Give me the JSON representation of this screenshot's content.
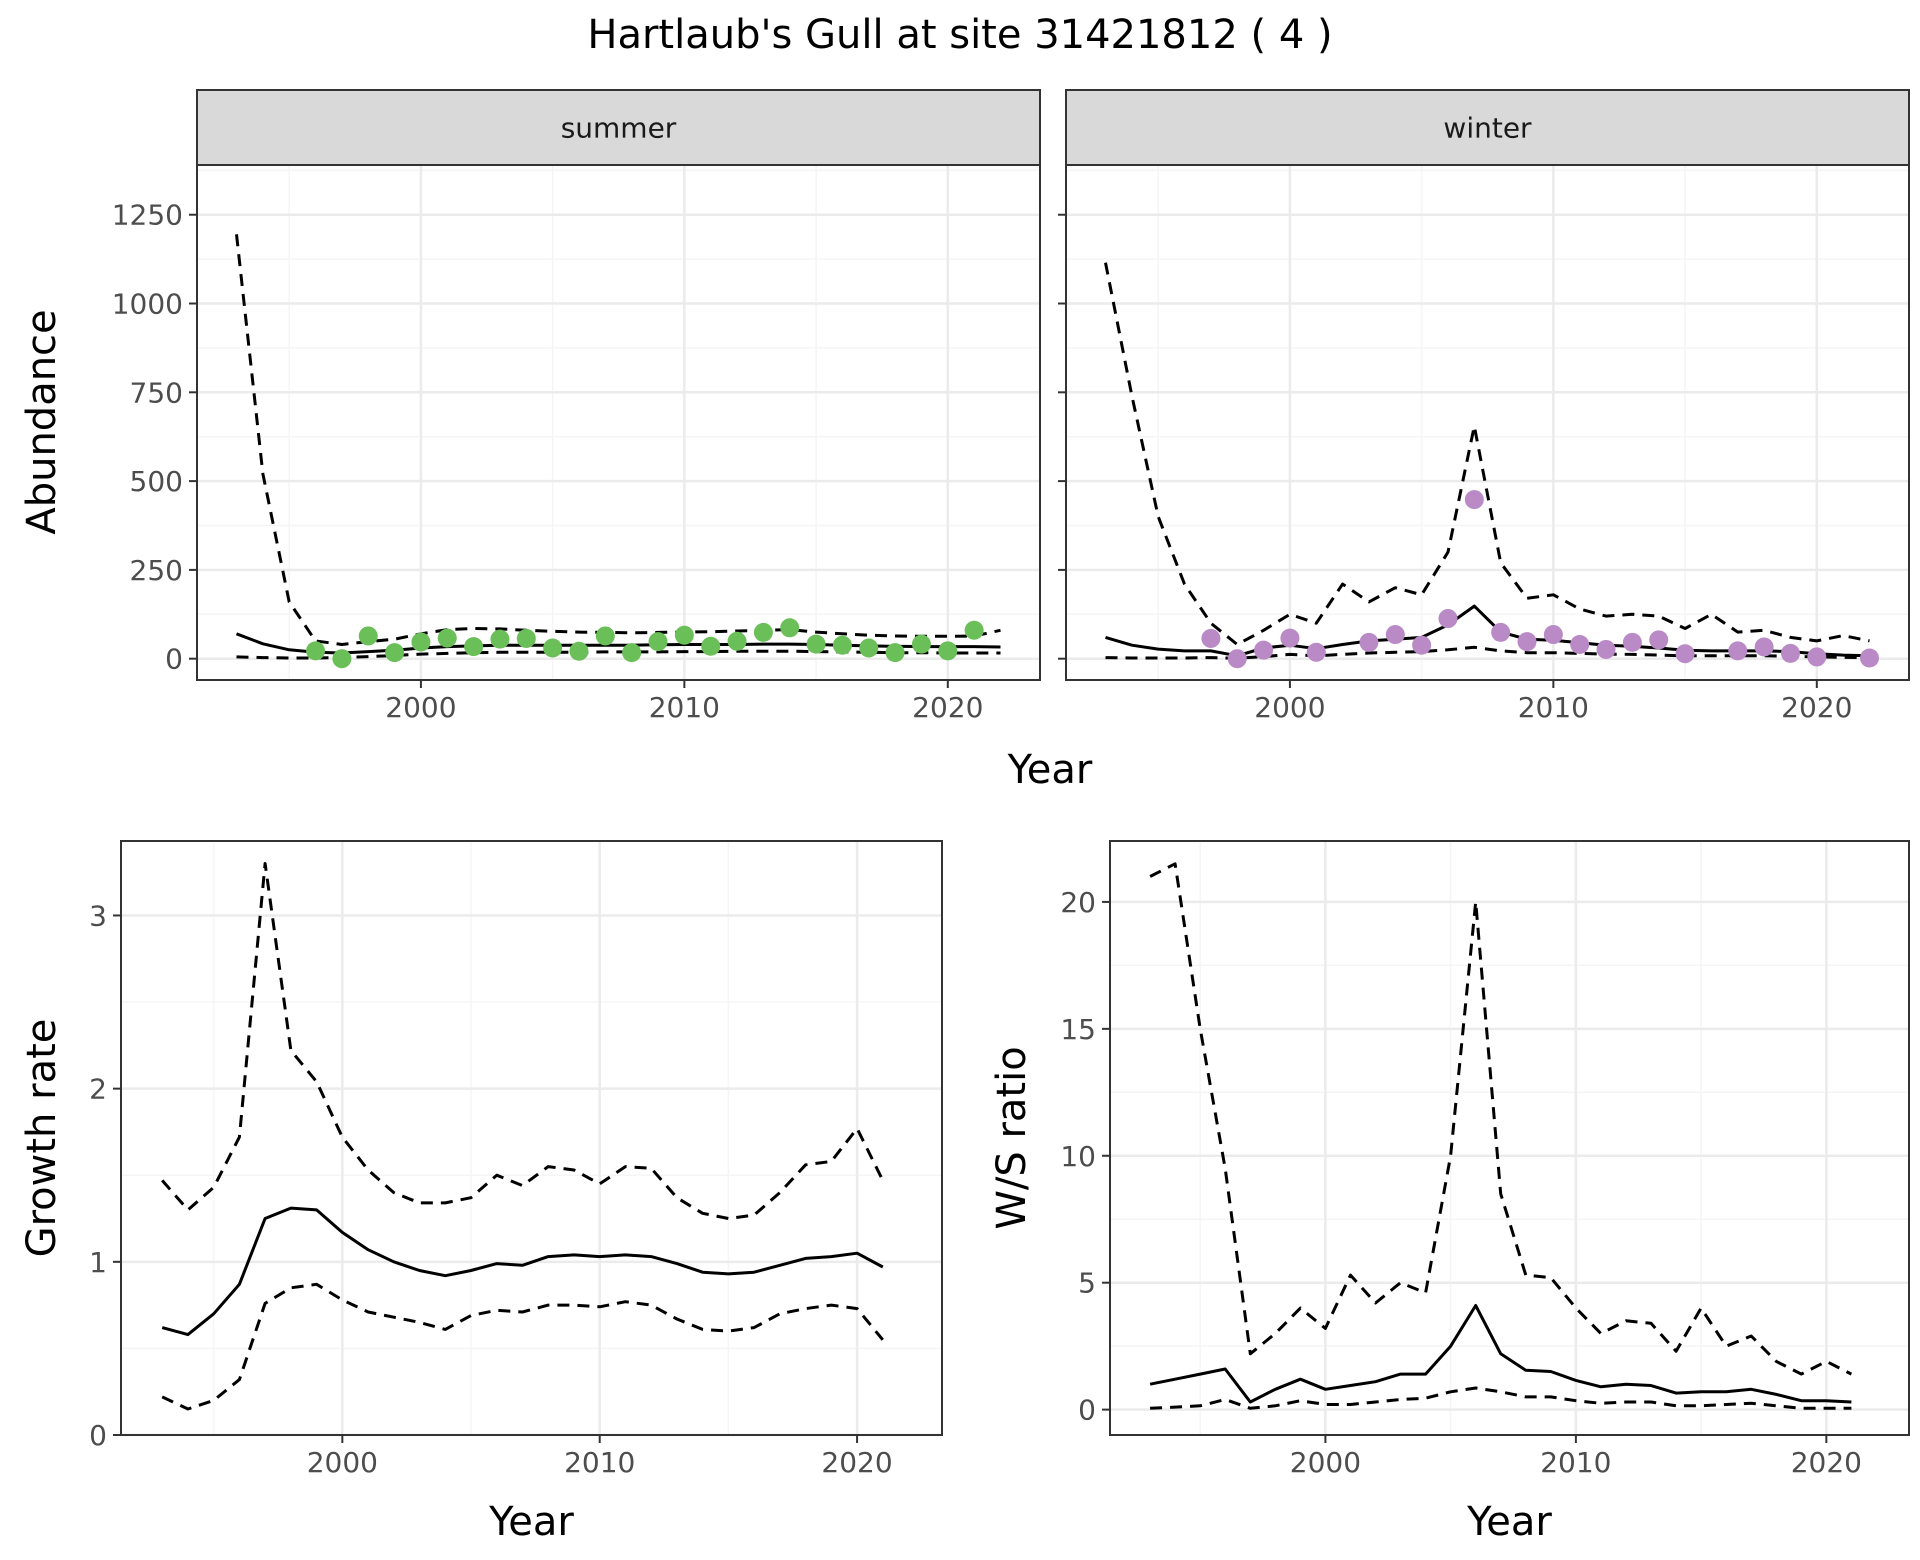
{
  "figure": {
    "title": "Hartlaub's Gull at site 31421812 ( 4 )"
  },
  "colors": {
    "summer_points": "#6BBF59",
    "winter_points": "#B98AC6",
    "line": "#000000",
    "strip_bg": "#D9D9D9",
    "grid_major": "#EBEBEB",
    "grid_minor": "#F5F5F5",
    "border": "#333333"
  },
  "chart_data": [
    {
      "id": "abundance",
      "type": "line",
      "facets": [
        "summer",
        "winter"
      ],
      "xlabel": "Year",
      "ylabel": "Abundance",
      "xlim": [
        1991.5,
        2023.5
      ],
      "ylim": [
        -60,
        1390
      ],
      "xticks": [
        2000,
        2010,
        2020
      ],
      "yticks": [
        0,
        250,
        500,
        750,
        1000,
        1250
      ],
      "grid": true,
      "panels": [
        {
          "name": "summer",
          "estimate": {
            "x": [
              1993,
              1994,
              1995,
              1996,
              1997,
              1998,
              1999,
              2000,
              2001,
              2002,
              2003,
              2004,
              2005,
              2006,
              2007,
              2008,
              2009,
              2010,
              2011,
              2012,
              2013,
              2014,
              2015,
              2016,
              2017,
              2018,
              2019,
              2020,
              2021,
              2022
            ],
            "y": [
              70,
              42,
              25,
              18,
              16,
              20,
              24,
              30,
              34,
              36,
              38,
              38,
              38,
              38,
              38,
              38,
              39,
              40,
              40,
              40,
              41,
              41,
              40,
              38,
              36,
              35,
              34,
              34,
              34,
              33
            ]
          },
          "lower": {
            "x": [
              1993,
              1994,
              1995,
              1996,
              1997,
              1998,
              1999,
              2000,
              2001,
              2002,
              2003,
              2004,
              2005,
              2006,
              2007,
              2008,
              2009,
              2010,
              2011,
              2012,
              2013,
              2014,
              2015,
              2016,
              2017,
              2018,
              2019,
              2020,
              2021,
              2022
            ],
            "y": [
              5,
              3,
              2,
              2,
              3,
              6,
              9,
              13,
              15,
              17,
              18,
              18,
              18,
              18,
              19,
              19,
              19,
              20,
              20,
              21,
              21,
              21,
              20,
              19,
              18,
              17,
              17,
              16,
              16,
              16
            ]
          },
          "upper": {
            "x": [
              1993,
              1994,
              1995,
              1996,
              1997,
              1998,
              1999,
              2000,
              2001,
              2002,
              2003,
              2004,
              2005,
              2006,
              2007,
              2008,
              2009,
              2010,
              2011,
              2012,
              2013,
              2014,
              2015,
              2016,
              2017,
              2018,
              2019,
              2020,
              2021,
              2022
            ],
            "y": [
              1195,
              520,
              160,
              50,
              40,
              48,
              55,
              70,
              82,
              85,
              84,
              80,
              77,
              75,
              74,
              73,
              74,
              75,
              76,
              78,
              80,
              82,
              75,
              70,
              66,
              64,
              63,
              63,
              64,
              80
            ]
          },
          "observed": {
            "x": [
              1996,
              1997,
              1998,
              1999,
              2000,
              2001,
              2002,
              2003,
              2004,
              2005,
              2006,
              2007,
              2008,
              2009,
              2010,
              2011,
              2012,
              2013,
              2014,
              2015,
              2016,
              2017,
              2018,
              2019,
              2020,
              2021
            ],
            "y": [
              22,
              0,
              64,
              17,
              47,
              58,
              34,
              55,
              57,
              30,
              21,
              64,
              17,
              48,
              66,
              35,
              49,
              74,
              87,
              41,
              38,
              30,
              17,
              41,
              22,
              80
            ]
          }
        },
        {
          "name": "winter",
          "estimate": {
            "x": [
              1993,
              1994,
              1995,
              1996,
              1997,
              1998,
              1999,
              2000,
              2001,
              2002,
              2003,
              2004,
              2005,
              2006,
              2007,
              2008,
              2009,
              2010,
              2011,
              2012,
              2013,
              2014,
              2015,
              2016,
              2017,
              2018,
              2019,
              2020,
              2021,
              2022
            ],
            "y": [
              60,
              38,
              27,
              22,
              22,
              8,
              30,
              38,
              28,
              40,
              50,
              55,
              60,
              95,
              148,
              75,
              55,
              52,
              45,
              38,
              35,
              30,
              24,
              22,
              22,
              22,
              20,
              14,
              10,
              8
            ]
          },
          "lower": {
            "x": [
              1993,
              1994,
              1995,
              1996,
              1997,
              1998,
              1999,
              2000,
              2001,
              2002,
              2003,
              2004,
              2005,
              2006,
              2007,
              2008,
              2009,
              2010,
              2011,
              2012,
              2013,
              2014,
              2015,
              2016,
              2017,
              2018,
              2019,
              2020,
              2021,
              2022
            ],
            "y": [
              3,
              2,
              2,
              2,
              3,
              1,
              6,
              12,
              8,
              12,
              16,
              18,
              20,
              25,
              32,
              22,
              17,
              17,
              15,
              13,
              12,
              10,
              8,
              8,
              8,
              8,
              7,
              5,
              4,
              3
            ]
          },
          "upper": {
            "x": [
              1993,
              1994,
              1995,
              1996,
              1997,
              1998,
              1999,
              2000,
              2001,
              2002,
              2003,
              2004,
              2005,
              2006,
              2007,
              2008,
              2009,
              2010,
              2011,
              2012,
              2013,
              2014,
              2015,
              2016,
              2017,
              2018,
              2019,
              2020,
              2021,
              2022
            ],
            "y": [
              1115,
              740,
              400,
              210,
              100,
              40,
              80,
              125,
              100,
              210,
              160,
              200,
              180,
              300,
              655,
              270,
              170,
              180,
              140,
              120,
              125,
              120,
              85,
              125,
              75,
              80,
              60,
              50,
              65,
              50
            ]
          },
          "observed": {
            "x": [
              1997,
              1998,
              1999,
              2000,
              2001,
              2003,
              2004,
              2005,
              2006,
              2007,
              2008,
              2009,
              2010,
              2011,
              2012,
              2013,
              2014,
              2015,
              2017,
              2018,
              2019,
              2020,
              2022
            ],
            "y": [
              57,
              0,
              24,
              58,
              18,
              46,
              68,
              38,
              113,
              448,
              74,
              48,
              68,
              40,
              26,
              46,
              53,
              14,
              22,
              33,
              15,
              5,
              2
            ]
          }
        }
      ]
    },
    {
      "id": "growth",
      "type": "line",
      "xlabel": "Year",
      "ylabel": "Growth rate",
      "xlim": [
        1991.4,
        2023.3
      ],
      "ylim": [
        0,
        3.43
      ],
      "xticks": [
        2000,
        2010,
        2020
      ],
      "yticks": [
        0,
        1,
        2,
        3
      ],
      "grid": true,
      "estimate": {
        "x": [
          1993,
          1994,
          1995,
          1996,
          1997,
          1998,
          1999,
          2000,
          2001,
          2002,
          2003,
          2004,
          2005,
          2006,
          2007,
          2008,
          2009,
          2010,
          2011,
          2012,
          2013,
          2014,
          2015,
          2016,
          2017,
          2018,
          2019,
          2020,
          2021
        ],
        "y": [
          0.62,
          0.58,
          0.7,
          0.87,
          1.25,
          1.31,
          1.3,
          1.17,
          1.07,
          1.0,
          0.95,
          0.92,
          0.95,
          0.99,
          0.98,
          1.03,
          1.04,
          1.03,
          1.04,
          1.03,
          0.99,
          0.94,
          0.93,
          0.94,
          0.98,
          1.02,
          1.03,
          1.05,
          0.97
        ]
      },
      "lower": {
        "x": [
          1993,
          1994,
          1995,
          1996,
          1997,
          1998,
          1999,
          2000,
          2001,
          2002,
          2003,
          2004,
          2005,
          2006,
          2007,
          2008,
          2009,
          2010,
          2011,
          2012,
          2013,
          2014,
          2015,
          2016,
          2017,
          2018,
          2019,
          2020,
          2021
        ],
        "y": [
          0.22,
          0.15,
          0.2,
          0.32,
          0.76,
          0.85,
          0.87,
          0.78,
          0.71,
          0.68,
          0.65,
          0.61,
          0.69,
          0.72,
          0.71,
          0.75,
          0.75,
          0.74,
          0.77,
          0.75,
          0.67,
          0.61,
          0.6,
          0.62,
          0.7,
          0.73,
          0.75,
          0.73,
          0.55
        ]
      },
      "upper": {
        "x": [
          1993,
          1994,
          1995,
          1996,
          1997,
          1998,
          1999,
          2000,
          2001,
          2002,
          2003,
          2004,
          2005,
          2006,
          2007,
          2008,
          2009,
          2010,
          2011,
          2012,
          2013,
          2014,
          2015,
          2016,
          2017,
          2018,
          2019,
          2020,
          2021
        ],
        "y": [
          1.47,
          1.3,
          1.43,
          1.72,
          3.3,
          2.22,
          2.04,
          1.72,
          1.53,
          1.4,
          1.34,
          1.34,
          1.37,
          1.5,
          1.44,
          1.55,
          1.53,
          1.45,
          1.55,
          1.54,
          1.37,
          1.28,
          1.25,
          1.27,
          1.4,
          1.56,
          1.58,
          1.77,
          1.47
        ]
      }
    },
    {
      "id": "ws_ratio",
      "type": "line",
      "xlabel": "Year",
      "ylabel": "W/S ratio",
      "xlim": [
        1991.4,
        2023.3
      ],
      "ylim": [
        -1.0,
        22.4
      ],
      "xticks": [
        2000,
        2010,
        2020
      ],
      "yticks": [
        0,
        5,
        10,
        15,
        20
      ],
      "grid": true,
      "estimate": {
        "x": [
          1993,
          1994,
          1995,
          1996,
          1997,
          1998,
          1999,
          2000,
          2001,
          2002,
          2003,
          2004,
          2005,
          2006,
          2007,
          2008,
          2009,
          2010,
          2011,
          2012,
          2013,
          2014,
          2015,
          2016,
          2017,
          2018,
          2019,
          2020,
          2021
        ],
        "y": [
          1.0,
          1.2,
          1.4,
          1.6,
          0.3,
          0.8,
          1.2,
          0.8,
          0.95,
          1.1,
          1.4,
          1.4,
          2.5,
          4.1,
          2.2,
          1.55,
          1.5,
          1.15,
          0.9,
          1.0,
          0.95,
          0.65,
          0.7,
          0.7,
          0.8,
          0.6,
          0.35,
          0.35,
          0.3
        ]
      },
      "lower": {
        "x": [
          1993,
          1994,
          1995,
          1996,
          1997,
          1998,
          1999,
          2000,
          2001,
          2002,
          2003,
          2004,
          2005,
          2006,
          2007,
          2008,
          2009,
          2010,
          2011,
          2012,
          2013,
          2014,
          2015,
          2016,
          2017,
          2018,
          2019,
          2020,
          2021
        ],
        "y": [
          0.05,
          0.1,
          0.15,
          0.4,
          0.05,
          0.15,
          0.35,
          0.2,
          0.2,
          0.3,
          0.4,
          0.45,
          0.7,
          0.85,
          0.7,
          0.5,
          0.5,
          0.35,
          0.25,
          0.3,
          0.3,
          0.15,
          0.15,
          0.2,
          0.25,
          0.15,
          0.05,
          0.05,
          0.05
        ]
      },
      "upper": {
        "x": [
          1993,
          1994,
          1995,
          1996,
          1997,
          1998,
          1999,
          2000,
          2001,
          2002,
          2003,
          2004,
          2005,
          2006,
          2007,
          2008,
          2009,
          2010,
          2011,
          2012,
          2013,
          2014,
          2015,
          2016,
          2017,
          2018,
          2019,
          2020,
          2021
        ],
        "y": [
          21.0,
          21.5,
          15.0,
          9.5,
          2.2,
          3.0,
          4.0,
          3.2,
          5.3,
          4.2,
          5.0,
          4.6,
          10.0,
          20.0,
          8.5,
          5.3,
          5.2,
          4.0,
          3.0,
          3.5,
          3.4,
          2.3,
          4.0,
          2.5,
          2.9,
          1.9,
          1.4,
          1.9,
          1.4
        ]
      }
    }
  ]
}
